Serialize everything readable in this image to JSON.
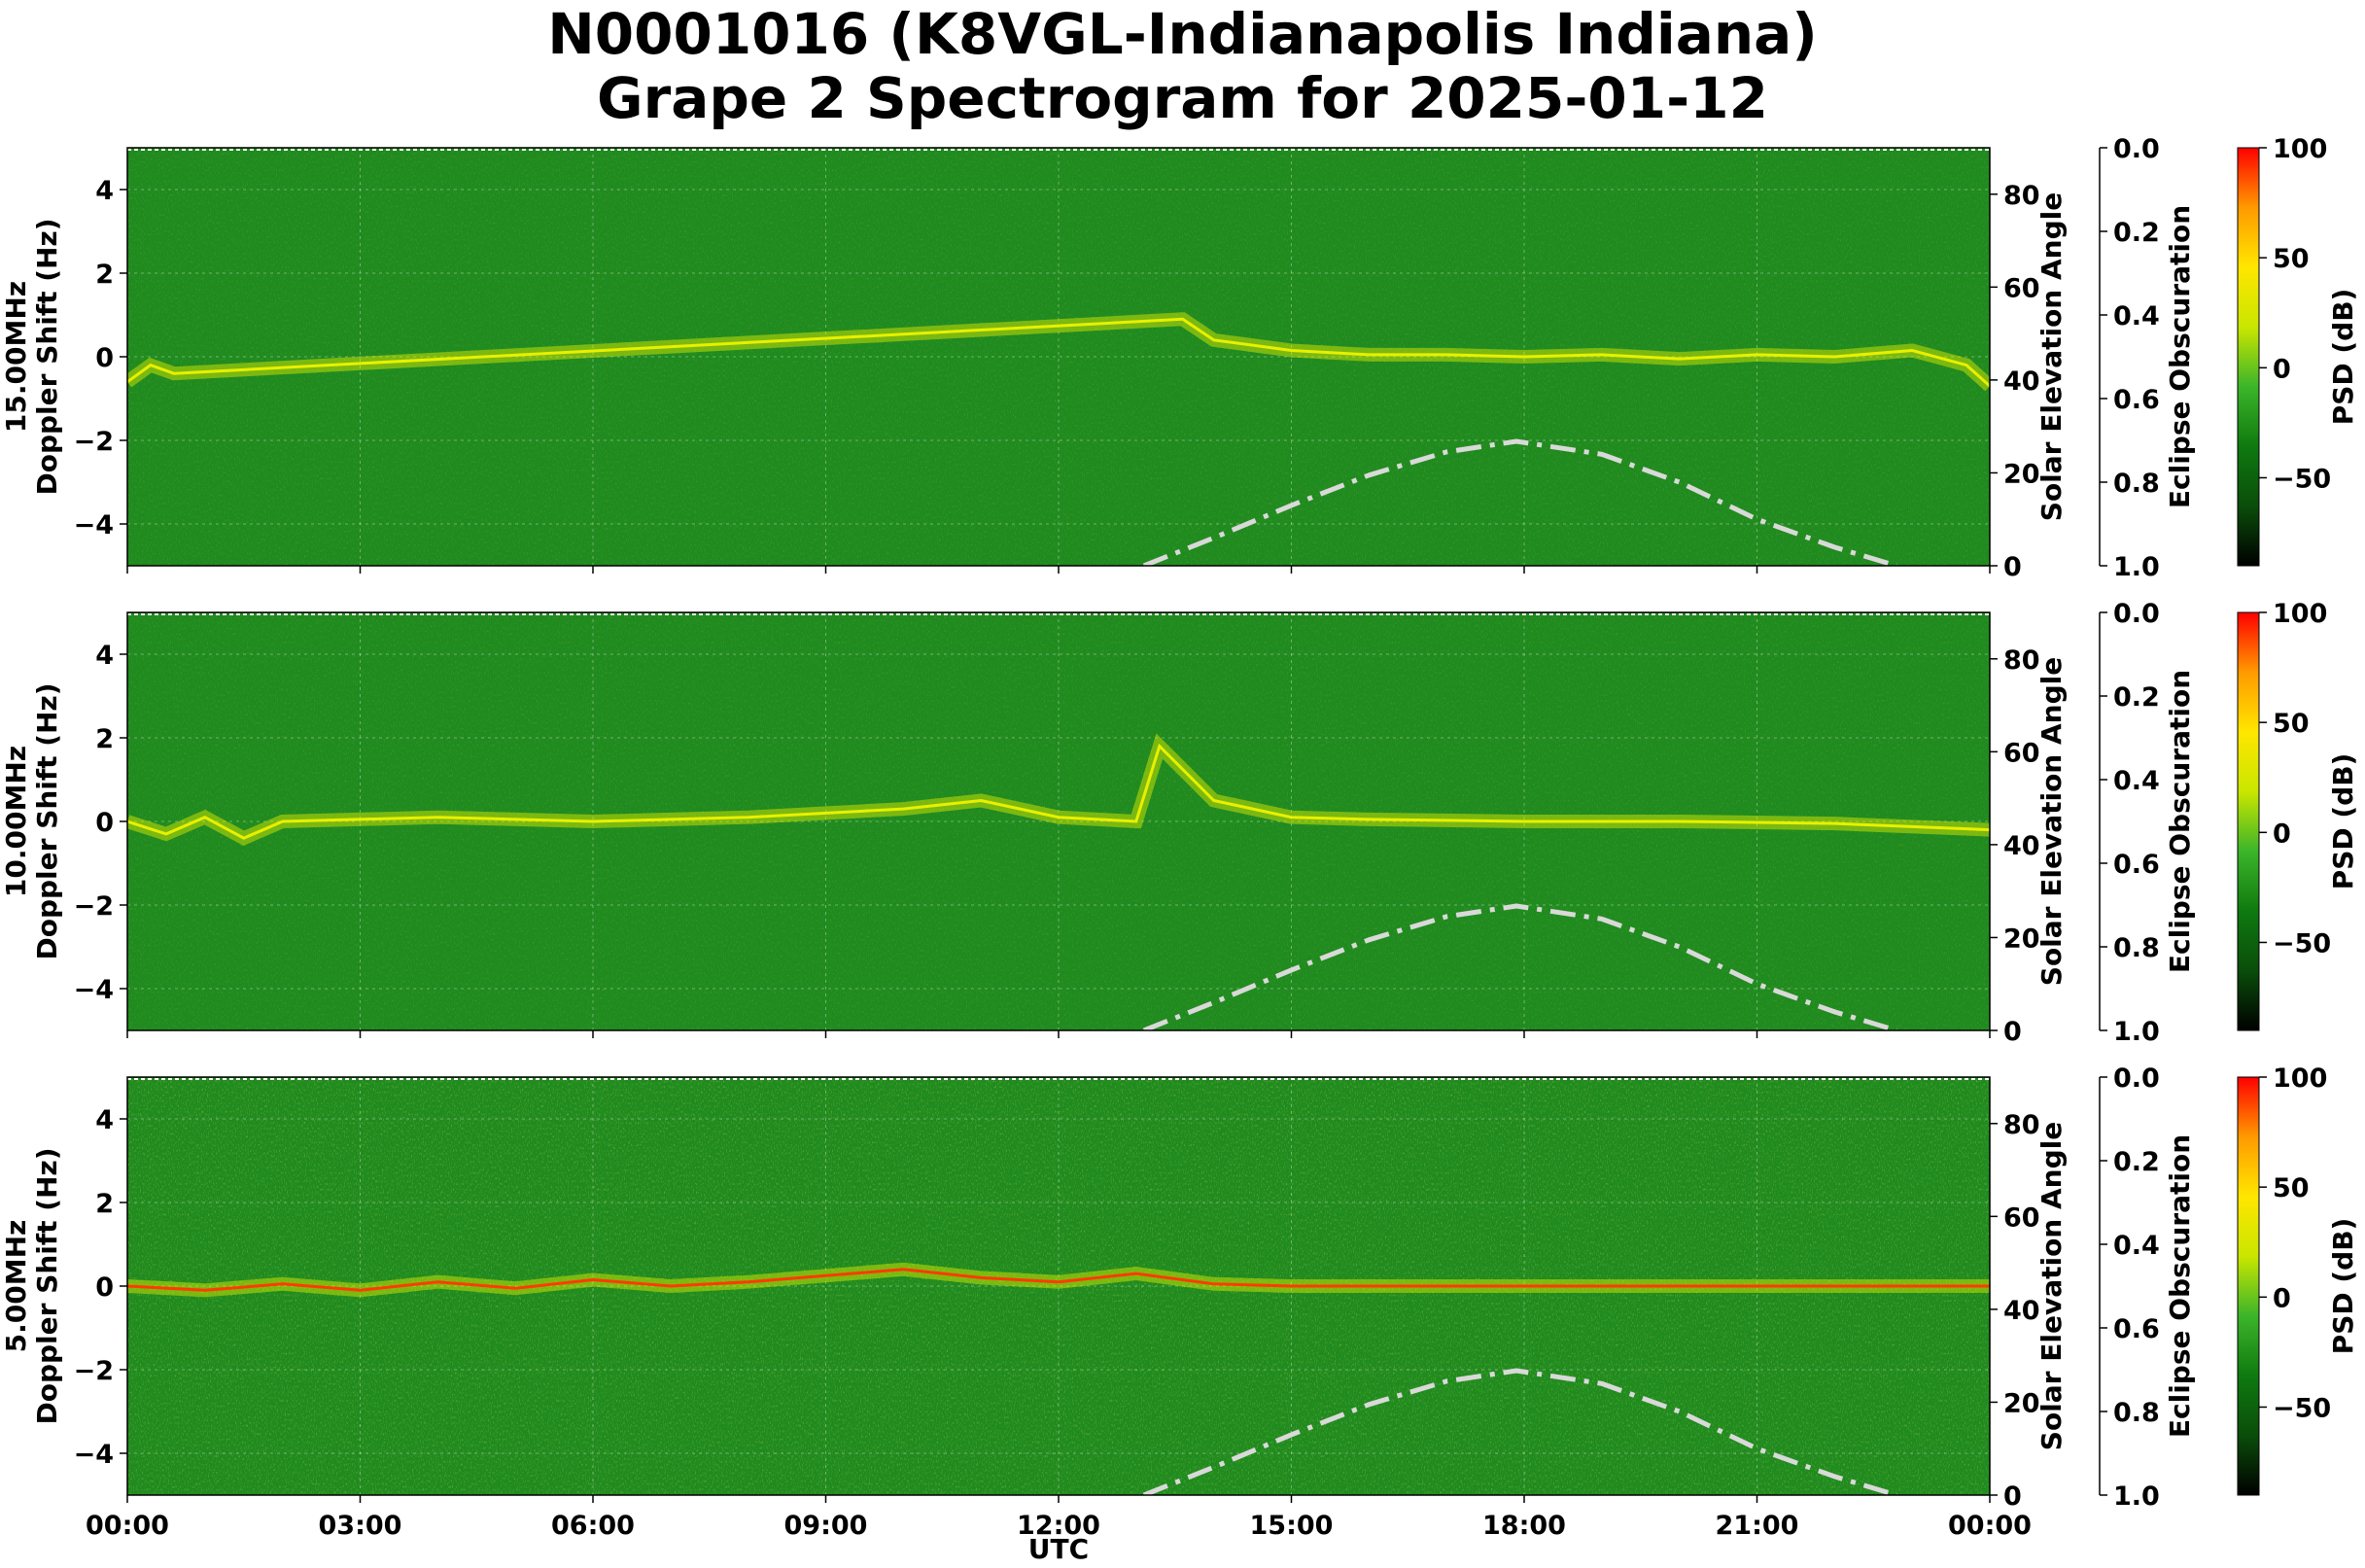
{
  "figure": {
    "title_line1": "N0001016 (K8VGL-Indianapolis Indiana)",
    "title_line2": "Grape 2 Spectrogram for 2025-01-12"
  },
  "colors": {
    "background_green": "#1f8a1f",
    "trace_yellow": "#e8f000",
    "trace_red": "#ff3b00",
    "solar_curve": "#d9d9d9",
    "colormap": [
      "#000000",
      "#0a4d0a",
      "#0f7a0f",
      "#3cb52a",
      "#c9e600",
      "#ffe600",
      "#ff9a00",
      "#ff0000"
    ]
  },
  "chart_data": {
    "type": "heatmap",
    "x_label": "UTC",
    "x_ticks": [
      "00:00",
      "03:00",
      "06:00",
      "09:00",
      "12:00",
      "15:00",
      "18:00",
      "21:00",
      "00:00"
    ],
    "y_label": "Doppler Shift (Hz)",
    "y_ticks": [
      "4",
      "2",
      "0",
      "−2",
      "−4"
    ],
    "ylim": [
      -5,
      5
    ],
    "right_axis": {
      "label": "Solar Elevation Angle",
      "ticks": [
        "80",
        "60",
        "40",
        "20",
        "0"
      ],
      "ylim": [
        0,
        90
      ]
    },
    "eclipse_axis": {
      "label": "Eclipse Obscuration",
      "ticks": [
        "0.0",
        "0.2",
        "0.4",
        "0.6",
        "0.8",
        "1.0"
      ]
    },
    "colorbar": {
      "label": "PSD (dB)",
      "ticks": [
        "100",
        "50",
        "0",
        "−50"
      ],
      "range": [
        -90,
        100
      ]
    },
    "solar_elevation": {
      "hours": [
        13.1,
        14,
        15,
        16,
        17,
        17.9,
        19,
        20,
        21,
        22,
        22.8
      ],
      "degrees": [
        0,
        6,
        13,
        19.5,
        24.5,
        26.8,
        24,
        18,
        10,
        4,
        0
      ]
    },
    "panels": [
      {
        "name": "15.00MHz",
        "trace": {
          "hours": [
            0,
            0.3,
            0.6,
            13.6,
            14,
            15,
            16,
            17,
            18,
            19,
            20,
            21,
            22,
            23,
            23.7,
            24
          ],
          "hz": [
            -0.6,
            -0.2,
            -0.4,
            0.9,
            0.4,
            0.15,
            0.05,
            0.05,
            0.0,
            0.05,
            -0.05,
            0.05,
            0.0,
            0.15,
            -0.2,
            -0.7
          ]
        }
      },
      {
        "name": "10.00MHz",
        "trace": {
          "hours": [
            0,
            0.5,
            1,
            1.5,
            2,
            4,
            6,
            8,
            10,
            11,
            12,
            13,
            13.3,
            14,
            15,
            16,
            18,
            20,
            22,
            24
          ],
          "hz": [
            0,
            -0.3,
            0.1,
            -0.4,
            0.0,
            0.1,
            0.0,
            0.1,
            0.3,
            0.5,
            0.1,
            0.0,
            1.8,
            0.5,
            0.1,
            0.05,
            0.0,
            0.0,
            -0.05,
            -0.2
          ]
        }
      },
      {
        "name": "5.00MHz",
        "trace": {
          "hours": [
            0,
            1,
            2,
            3,
            4,
            5,
            6,
            7,
            8,
            9,
            10,
            11,
            12,
            13,
            14,
            15,
            18,
            21,
            24
          ],
          "hz": [
            0,
            -0.1,
            0.05,
            -0.1,
            0.1,
            -0.05,
            0.15,
            0.0,
            0.1,
            0.25,
            0.4,
            0.2,
            0.1,
            0.3,
            0.05,
            0.0,
            0.0,
            0.0,
            0.0
          ]
        }
      }
    ]
  }
}
